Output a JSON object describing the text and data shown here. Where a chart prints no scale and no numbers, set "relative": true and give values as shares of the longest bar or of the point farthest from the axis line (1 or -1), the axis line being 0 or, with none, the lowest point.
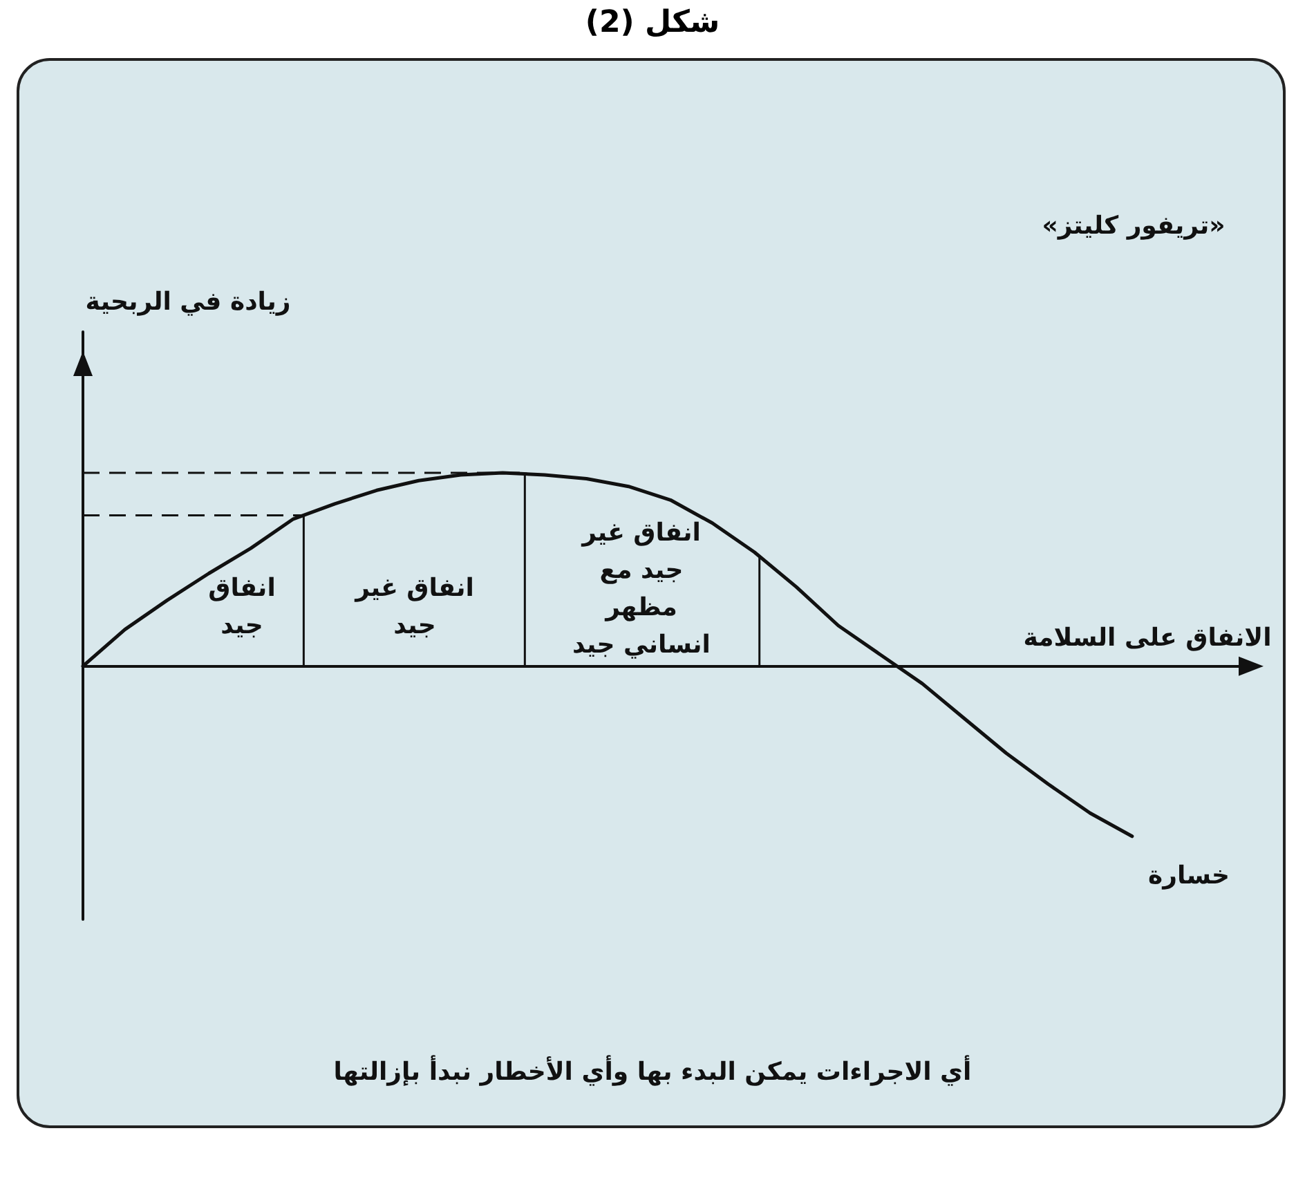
{
  "chart_data": {
    "type": "line",
    "relative": true,
    "title": "شكل (2)",
    "xlabel": "الانفاق على السلامة",
    "annotations": [
      "«تريفور كليتز»",
      "انفاق جيد",
      "انفاق غير جيد",
      "انفاق غير جيد مع مظهر انساني جيد",
      "خسارة",
      "أي الاجراءات يمكن البدء بها وأي الأخطار نبدأ بإزالتها",
      "زيادة في الربحية"
    ],
    "categories": [
      null,
      null,
      null,
      null,
      null,
      null,
      null,
      null,
      null,
      null,
      null,
      null,
      null,
      null,
      null,
      null,
      null,
      null,
      null,
      null,
      null,
      null,
      null,
      null,
      null,
      null
    ],
    "series": [
      {
        "color": "#111111",
        "values": [
          0,
          0.19,
          0.34,
          0.48,
          0.61,
          0.76,
          0.84,
          0.91,
          0.96,
          0.99,
          1,
          0.99,
          0.97,
          0.93,
          0.86,
          0.74,
          0.59,
          0.41,
          0.21,
          0.06,
          -0.09,
          -0.27,
          -0.45,
          -0.61,
          -0.76,
          -0.88
        ]
      }
    ],
    "grid": false,
    "marker": "none",
    "line_style": "solid"
  }
}
